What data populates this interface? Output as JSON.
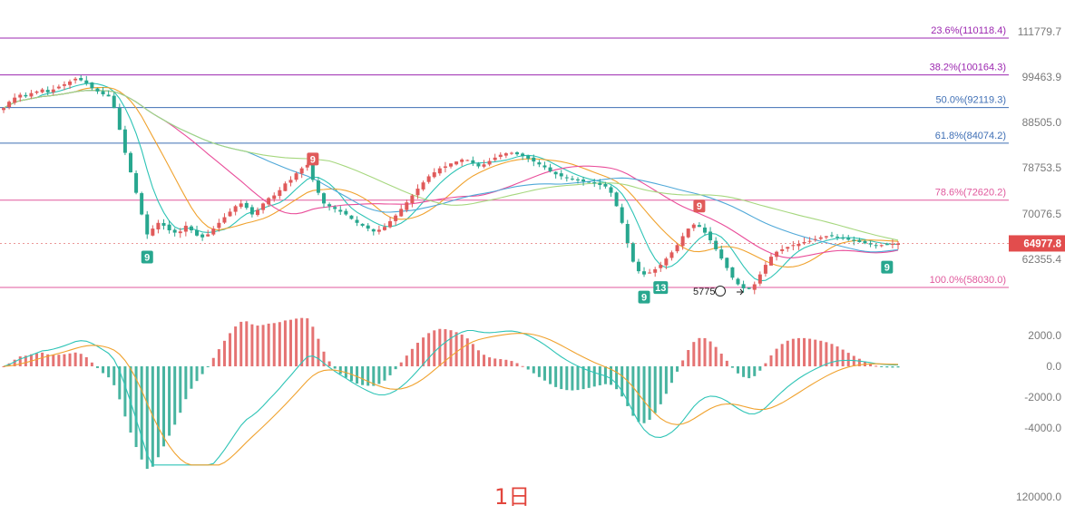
{
  "chart_data": [
    {
      "type": "candlestick",
      "title": "",
      "price_axis_ticks": [
        "111779.7",
        "99463.9",
        "88505.0",
        "78753.5",
        "70076.5",
        "62355.4"
      ],
      "last_price": "64977.8",
      "fib_levels": [
        {
          "label": "23.6%(110118.4)",
          "value": 110118.4,
          "color": "#9c27b0"
        },
        {
          "label": "38.2%(100164.3)",
          "value": 100164.3,
          "color": "#9c27b0"
        },
        {
          "label": "50.0%(92119.3)",
          "value": 92119.3,
          "color": "#3f6fb5"
        },
        {
          "label": "61.8%(84074.2)",
          "value": 84074.2,
          "color": "#3f6fb5"
        },
        {
          "label": "78.6%(72620.2)",
          "value": 72620.2,
          "color": "#e0589c"
        },
        {
          "label": "100.0%(58030.0)",
          "value": 58030.0,
          "color": "#e0589c"
        }
      ],
      "low_annotation": {
        "label": "57756",
        "value": 57756
      },
      "td_markers": [
        {
          "label": "9",
          "kind": "buy",
          "index": 26
        },
        {
          "label": "9",
          "kind": "sell",
          "index": 56
        },
        {
          "label": "9",
          "kind": "buy",
          "index": 116
        },
        {
          "label": "13",
          "kind": "buy",
          "index": 119
        },
        {
          "label": "9",
          "kind": "sell",
          "index": 126
        },
        {
          "label": "9",
          "kind": "buy",
          "index": 160
        }
      ],
      "close_values": [
        92000,
        93500,
        94500,
        95200,
        94800,
        95600,
        96000,
        96500,
        95800,
        96500,
        97200,
        97800,
        98500,
        99200,
        98800,
        98000,
        96800,
        96000,
        95300,
        94800,
        92000,
        87000,
        82000,
        78000,
        74000,
        70000,
        66500,
        67500,
        68500,
        68000,
        67200,
        66800,
        67000,
        68000,
        67200,
        66300,
        66000,
        66500,
        67500,
        68500,
        69500,
        70500,
        71500,
        72000,
        71200,
        70000,
        70800,
        72000,
        73000,
        73500,
        74500,
        75800,
        76500,
        77800,
        78800,
        79500,
        76500,
        74000,
        72000,
        71500,
        71000,
        70500,
        70000,
        69200,
        68500,
        68000,
        67500,
        67000,
        67300,
        67800,
        68800,
        69800,
        71000,
        72200,
        73500,
        74800,
        76000,
        77200,
        78000,
        78800,
        79200,
        79800,
        80200,
        80600,
        80500,
        79800,
        79200,
        79600,
        80300,
        81000,
        81600,
        81900,
        82000,
        81700,
        81300,
        80800,
        80200,
        79600,
        79000,
        78200,
        77600,
        77200,
        76900,
        76600,
        76400,
        76200,
        76000,
        75800,
        75500,
        75200,
        74000,
        71500,
        68500,
        65000,
        62000,
        60500,
        60000,
        60300,
        60800,
        61500,
        62500,
        63500,
        64700,
        66200,
        67500,
        68200,
        67800,
        66800,
        65500,
        64000,
        62500,
        61000,
        59500,
        58500,
        57900,
        57800,
        58500,
        60000,
        61500,
        62800,
        63600,
        64000,
        64400,
        64700,
        64900,
        65200,
        65400,
        65700,
        66000,
        66200,
        66300,
        66100,
        65800,
        65600,
        65400,
        65200,
        65000,
        64800,
        64600,
        64700,
        64800,
        64900,
        64977.8
      ],
      "macd_axis_ticks": [
        "2000.0",
        "0.0",
        "-2000.0",
        "-4000.0"
      ],
      "macd_range": [
        -6400,
        2400
      ],
      "volume_axis_tick": "120000.0",
      "timeframe": "1日"
    }
  ],
  "colors": {
    "up": "#e05a5a",
    "down": "#28a78f",
    "ma_fast": "#2ec4b6",
    "ma_mid": "#f0a22e",
    "ma_pink": "#e94d9a",
    "ma_blue": "#4fa8d8",
    "ma_green": "#a6d77e",
    "macd_line": "#2ec4b6",
    "signal_line": "#f0a22e"
  }
}
